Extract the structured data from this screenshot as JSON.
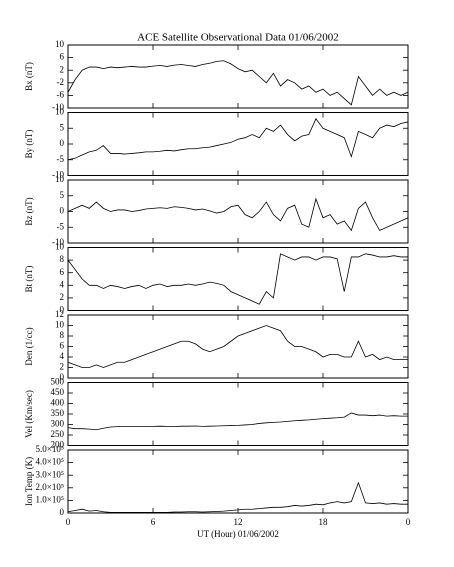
{
  "chart_data": [
    {
      "type": "line",
      "title": "ACE Satellite Observational Data   01/06/2002",
      "ylabel": "Bx (nT)",
      "color": "#000000",
      "x": [
        0,
        0.5,
        1,
        1.5,
        2,
        2.5,
        3,
        3.5,
        4,
        4.5,
        5,
        5.5,
        6,
        6.5,
        7,
        7.5,
        8,
        8.5,
        9,
        9.5,
        10,
        10.5,
        11,
        11.5,
        12,
        12.5,
        13,
        13.5,
        14,
        14.5,
        15,
        15.5,
        16,
        16.5,
        17,
        17.5,
        18,
        18.5,
        19,
        19.5,
        20,
        20.5,
        21,
        21.5,
        22,
        22.5,
        23,
        23.5,
        24
      ],
      "values": [
        -5,
        -1,
        2,
        3,
        3,
        2.5,
        3,
        2.8,
        3,
        3.2,
        3,
        3,
        3.3,
        3.5,
        3.2,
        3.6,
        3.8,
        3.5,
        3.2,
        3.8,
        4.2,
        4.8,
        5,
        4,
        2.5,
        1.5,
        2,
        0,
        -2,
        1,
        -3,
        -1,
        -2,
        -4,
        -3,
        -5,
        -4,
        -6,
        -5,
        -7,
        -9,
        0,
        -3,
        -6,
        -4,
        -6,
        -5,
        -6,
        -5
      ],
      "xlim": [
        0,
        24
      ],
      "ylim": [
        -10,
        10
      ],
      "yticks": [
        10,
        6,
        2,
        -2,
        -6,
        -10
      ]
    },
    {
      "type": "line",
      "ylabel": "By (nT)",
      "color": "#000000",
      "x": [
        0,
        0.5,
        1,
        1.5,
        2,
        2.5,
        3,
        3.5,
        4,
        4.5,
        5,
        5.5,
        6,
        6.5,
        7,
        7.5,
        8,
        8.5,
        9,
        9.5,
        10,
        10.5,
        11,
        11.5,
        12,
        12.5,
        13,
        13.5,
        14,
        14.5,
        15,
        15.5,
        16,
        16.5,
        17,
        17.5,
        18,
        18.5,
        19,
        19.5,
        20,
        20.5,
        21,
        21.5,
        22,
        22.5,
        23,
        23.5,
        24
      ],
      "values": [
        -5,
        -4.5,
        -3.5,
        -2.5,
        -2,
        -0.5,
        -3,
        -3,
        -3.2,
        -3,
        -2.8,
        -2.5,
        -2.5,
        -2.3,
        -2,
        -2.2,
        -1.8,
        -1.5,
        -1.5,
        -1.2,
        -1,
        -0.5,
        0,
        0.5,
        1.5,
        2,
        3,
        2,
        5,
        4,
        6,
        3,
        1,
        2.5,
        3,
        8,
        5,
        4,
        3,
        2,
        -4,
        4,
        3,
        2,
        5,
        6,
        5.5,
        6.5,
        7
      ],
      "xlim": [
        0,
        24
      ],
      "ylim": [
        -10,
        10
      ],
      "yticks": [
        10,
        5,
        0,
        -5,
        -10
      ]
    },
    {
      "type": "line",
      "ylabel": "Bz (nT)",
      "color": "#000000",
      "x": [
        0,
        0.5,
        1,
        1.5,
        2,
        2.5,
        3,
        3.5,
        4,
        4.5,
        5,
        5.5,
        6,
        6.5,
        7,
        7.5,
        8,
        8.5,
        9,
        9.5,
        10,
        10.5,
        11,
        11.5,
        12,
        12.5,
        13,
        13.5,
        14,
        14.5,
        15,
        15.5,
        16,
        16.5,
        17,
        17.5,
        18,
        18.5,
        19,
        19.5,
        20,
        20.5,
        21,
        21.5,
        22,
        22.5,
        23,
        23.5,
        24
      ],
      "values": [
        0,
        1,
        2,
        1,
        3,
        1,
        0,
        0.5,
        0.5,
        0,
        0.3,
        0.8,
        1,
        1.2,
        1,
        1.5,
        1.3,
        1,
        0.5,
        0.8,
        0.2,
        -0.5,
        0,
        1.5,
        2,
        -1,
        -2,
        0,
        3,
        -1,
        -3,
        1,
        2,
        -4,
        -5,
        4,
        -2,
        -1,
        -4,
        -3,
        -6,
        1,
        3,
        -2,
        -6,
        -5,
        -4,
        -3,
        -2
      ],
      "xlim": [
        0,
        24
      ],
      "ylim": [
        -10,
        10
      ],
      "yticks": [
        10,
        5,
        0,
        -5,
        -10
      ]
    },
    {
      "type": "line",
      "ylabel": "Bt (nT)",
      "color": "#000000",
      "x": [
        0,
        0.5,
        1,
        1.5,
        2,
        2.5,
        3,
        3.5,
        4,
        4.5,
        5,
        5.5,
        6,
        6.5,
        7,
        7.5,
        8,
        8.5,
        9,
        9.5,
        10,
        10.5,
        11,
        11.5,
        12,
        12.5,
        13,
        13.5,
        14,
        14.5,
        15,
        15.5,
        16,
        16.5,
        17,
        17.5,
        18,
        18.5,
        19,
        19.5,
        20,
        20.5,
        21,
        21.5,
        22,
        22.5,
        23,
        23.5,
        24
      ],
      "values": [
        8,
        6.5,
        5,
        4,
        4,
        3.5,
        4,
        3.8,
        3.5,
        3.8,
        4,
        3.5,
        4,
        4.2,
        3.8,
        4,
        4,
        4.2,
        4,
        4.2,
        4.5,
        4.3,
        4,
        3,
        2.5,
        2,
        1.5,
        1,
        3,
        2,
        9,
        8.5,
        8,
        8.5,
        8.5,
        8,
        8.5,
        8.5,
        8.2,
        3,
        8.5,
        8.5,
        9,
        8.8,
        8.5,
        8.5,
        8.7,
        8.5,
        8.5
      ],
      "xlim": [
        0,
        24
      ],
      "ylim": [
        0,
        10
      ],
      "yticks": [
        10,
        8,
        6,
        4,
        2,
        0
      ]
    },
    {
      "type": "line",
      "ylabel": "Den (1/cc)",
      "color": "#000000",
      "x": [
        0,
        0.5,
        1,
        1.5,
        2,
        2.5,
        3,
        3.5,
        4,
        4.5,
        5,
        5.5,
        6,
        6.5,
        7,
        7.5,
        8,
        8.5,
        9,
        9.5,
        10,
        10.5,
        11,
        11.5,
        12,
        12.5,
        13,
        13.5,
        14,
        14.5,
        15,
        15.5,
        16,
        16.5,
        17,
        17.5,
        18,
        18.5,
        19,
        19.5,
        20,
        20.5,
        21,
        21.5,
        22,
        22.5,
        23,
        23.5,
        24
      ],
      "values": [
        3,
        2.5,
        2,
        2,
        2.5,
        2,
        2.5,
        3,
        3,
        3.5,
        4,
        4.5,
        5,
        5.5,
        6,
        6.5,
        7,
        7,
        6.5,
        5.5,
        5,
        5.5,
        6,
        7,
        8,
        8.5,
        9,
        9.5,
        10,
        9.5,
        9,
        7,
        6,
        6,
        5.5,
        5,
        4,
        4.5,
        4.5,
        4,
        4,
        7,
        4,
        4.5,
        3.5,
        4,
        3.5,
        3.5,
        3.5
      ],
      "xlim": [
        0,
        24
      ],
      "ylim": [
        0,
        12
      ],
      "yticks": [
        12,
        10,
        8,
        6,
        4,
        2,
        0
      ]
    },
    {
      "type": "line",
      "ylabel": "Vel (Km/sec)",
      "color": "#000000",
      "x": [
        0,
        0.5,
        1,
        1.5,
        2,
        2.5,
        3,
        3.5,
        4,
        4.5,
        5,
        5.5,
        6,
        6.5,
        7,
        7.5,
        8,
        8.5,
        9,
        9.5,
        10,
        10.5,
        11,
        11.5,
        12,
        12.5,
        13,
        13.5,
        14,
        14.5,
        15,
        15.5,
        16,
        16.5,
        17,
        17.5,
        18,
        18.5,
        19,
        19.5,
        20,
        20.5,
        21,
        21.5,
        22,
        22.5,
        23,
        23.5,
        24
      ],
      "values": [
        285,
        280,
        280,
        278,
        275,
        282,
        288,
        290,
        290,
        290,
        290,
        290,
        291,
        292,
        291,
        290,
        292,
        292,
        293,
        291,
        292,
        293,
        294,
        295,
        296,
        298,
        300,
        305,
        308,
        310,
        312,
        315,
        318,
        320,
        322,
        325,
        328,
        330,
        332,
        335,
        355,
        345,
        345,
        342,
        345,
        340,
        342,
        340,
        340
      ],
      "xlim": [
        0,
        24
      ],
      "ylim": [
        200,
        500
      ],
      "yticks": [
        500,
        450,
        400,
        350,
        300,
        250,
        200
      ]
    },
    {
      "type": "line",
      "ylabel": "Ion Temp (K)",
      "xlabel": "UT (Hour)  01/06/2002",
      "color": "#000000",
      "x": [
        0,
        0.5,
        1,
        1.5,
        2,
        2.5,
        3,
        3.5,
        4,
        4.5,
        5,
        5.5,
        6,
        6.5,
        7,
        7.5,
        8,
        8.5,
        9,
        9.5,
        10,
        10.5,
        11,
        11.5,
        12,
        12.5,
        13,
        13.5,
        14,
        14.5,
        15,
        15.5,
        16,
        16.5,
        17,
        17.5,
        18,
        18.5,
        19,
        19.5,
        20,
        20.5,
        21,
        21.5,
        22,
        22.5,
        23,
        23.5,
        24
      ],
      "values": [
        10000,
        20000,
        30000,
        15000,
        20000,
        10000,
        5000,
        5000,
        5000,
        5000,
        5000,
        5000,
        5000,
        5000,
        5000,
        8000,
        8000,
        10000,
        10000,
        8000,
        10000,
        12000,
        15000,
        20000,
        25000,
        30000,
        30000,
        35000,
        40000,
        45000,
        45000,
        50000,
        60000,
        55000,
        60000,
        70000,
        65000,
        80000,
        90000,
        80000,
        90000,
        240000,
        80000,
        75000,
        80000,
        70000,
        75000,
        70000,
        70000
      ],
      "xlim": [
        0,
        24
      ],
      "ylim": [
        0,
        500000
      ],
      "yticks": [
        {
          "value": 500000,
          "label": "5.0×10⁵"
        },
        {
          "value": 400000,
          "label": "4.0×10⁵"
        },
        {
          "value": 300000,
          "label": "3.0×10⁵"
        },
        {
          "value": 200000,
          "label": "2.0×10⁵"
        },
        {
          "value": 100000,
          "label": "1.0×10⁵"
        },
        0
      ],
      "xticks": [
        0,
        6,
        12,
        18,
        {
          "value": 24,
          "label": "0"
        }
      ]
    }
  ]
}
